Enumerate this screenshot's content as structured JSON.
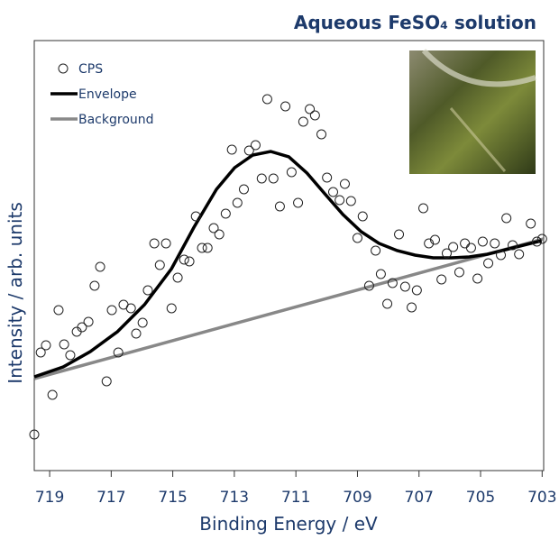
{
  "chart_data": {
    "type": "scatter",
    "title": "Aqueous FeSO₄ solution",
    "x_label": "Binding Energy / eV",
    "y_label": "Intensity / arb. units",
    "xlim": [
      719.5,
      702.95
    ],
    "ylim": [
      0,
      477
    ],
    "xticks": [
      719,
      717,
      715,
      713,
      711,
      709,
      707,
      705,
      703
    ],
    "legend": "upper left",
    "series": [
      {
        "name": "CPS",
        "mode": "markers",
        "color": "#222222",
        "x": [
          719.5,
          719.29,
          719.12,
          718.91,
          718.71,
          718.53,
          718.33,
          718.12,
          717.95,
          717.74,
          717.54,
          717.36,
          717.15,
          716.98,
          716.77,
          716.6,
          716.36,
          716.19,
          715.98,
          715.81,
          715.6,
          715.42,
          715.22,
          715.04,
          714.84,
          714.63,
          714.46,
          714.25,
          714.05,
          713.87,
          713.67,
          713.49,
          713.28,
          713.08,
          712.9,
          712.69,
          712.52,
          712.31,
          712.11,
          711.93,
          711.73,
          711.52,
          711.34,
          711.14,
          710.93,
          710.76,
          710.55,
          710.38,
          710.17,
          709.99,
          709.79,
          709.58,
          709.41,
          709.21,
          709.0,
          708.83,
          708.62,
          708.41,
          708.24,
          708.03,
          707.86,
          707.65,
          707.45,
          707.24,
          707.07,
          706.86,
          706.68,
          706.48,
          706.27,
          706.1,
          705.89,
          705.69,
          705.51,
          705.31,
          705.1,
          704.93,
          704.75,
          704.54,
          704.34,
          704.16,
          703.96,
          703.75,
          703.37,
          703.17,
          703.0
        ],
        "values": [
          40,
          131,
          139,
          84,
          178,
          140,
          128,
          154,
          159,
          165,
          205,
          226,
          99,
          178,
          131,
          184,
          180,
          152,
          164,
          200,
          252,
          228,
          252,
          180,
          214,
          234,
          232,
          282,
          247,
          247,
          269,
          262,
          285,
          356,
          297,
          312,
          355,
          361,
          324,
          412,
          324,
          293,
          404,
          331,
          297,
          387,
          401,
          394,
          373,
          325,
          309,
          300,
          318,
          299,
          258,
          282,
          205,
          244,
          218,
          185,
          208,
          262,
          204,
          181,
          200,
          291,
          252,
          256,
          212,
          241,
          248,
          220,
          252,
          247,
          213,
          254,
          230,
          252,
          239,
          280,
          250,
          240,
          274,
          254,
          257
        ]
      },
      {
        "name": "Envelope",
        "mode": "lines",
        "color": "#000000",
        "x": [
          719.5,
          718.56,
          717.68,
          716.8,
          715.92,
          715.04,
          714.31,
          713.58,
          712.99,
          712.4,
          711.82,
          711.23,
          710.64,
          710.06,
          709.47,
          708.88,
          708.3,
          707.71,
          707.13,
          706.54,
          705.95,
          705.37,
          704.78,
          704.19,
          703.61,
          703.02
        ],
        "values": [
          104,
          115,
          132,
          154,
          184,
          224,
          270,
          312,
          336,
          350,
          354,
          348,
          330,
          307,
          284,
          265,
          252,
          244,
          239,
          236,
          236,
          237,
          240,
          245,
          250,
          255
        ]
      },
      {
        "name": "Background",
        "mode": "lines",
        "color": "#888888",
        "x": [
          719.5,
          702.95
        ],
        "values": [
          102,
          257
        ]
      }
    ]
  }
}
